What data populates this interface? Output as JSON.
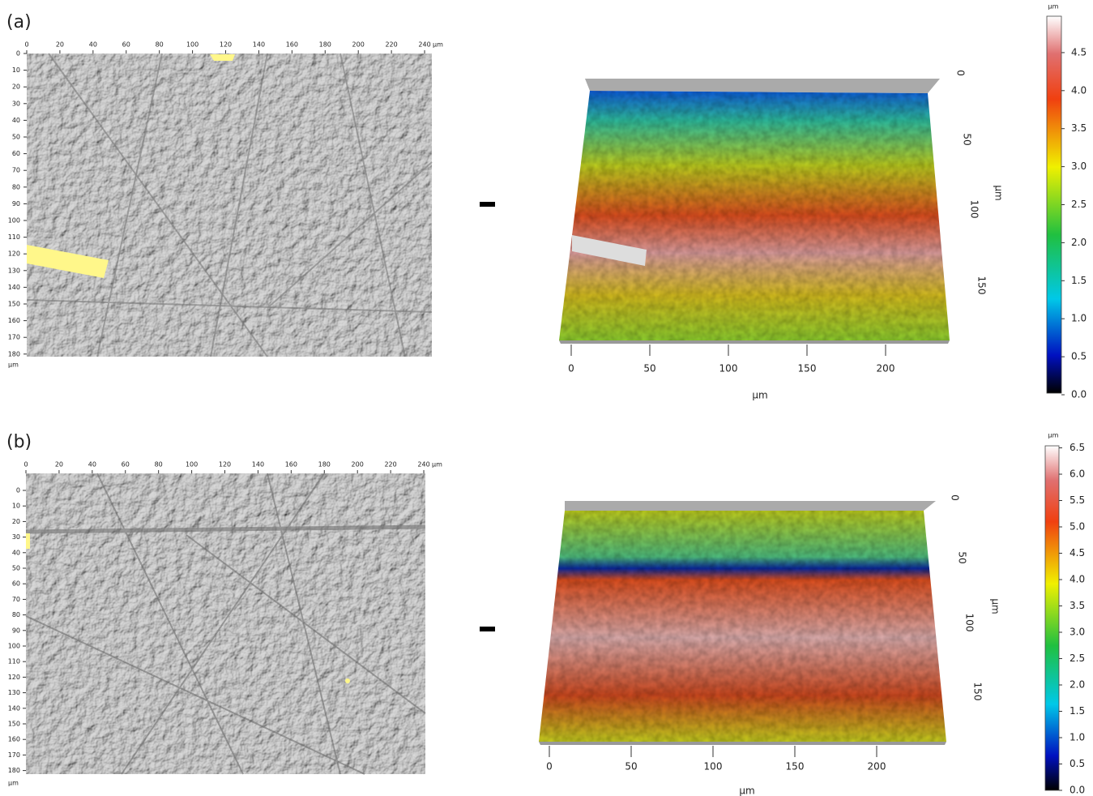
{
  "panels": [
    {
      "label": "(a)",
      "map": {
        "x_ticks": [
          0,
          20,
          40,
          60,
          80,
          100,
          120,
          140,
          160,
          180,
          200,
          220,
          240
        ],
        "x_unit": "µm",
        "y_ticks": [
          0,
          10,
          20,
          30,
          40,
          50,
          60,
          70,
          80,
          90,
          100,
          110,
          120,
          130,
          140,
          150,
          160,
          170,
          180
        ],
        "y_unit": "µm"
      },
      "view3d": {
        "x_ticks": [
          0,
          50,
          100,
          150,
          200
        ],
        "x_label": "µm",
        "y_ticks": [
          0,
          50,
          100,
          150
        ],
        "y_label": "µm"
      },
      "colorbar": {
        "unit": "µm",
        "ticks": [
          "0.0",
          "0.5",
          "1.0",
          "1.5",
          "2.0",
          "2.5",
          "3.0",
          "3.5",
          "4.0",
          "4.5"
        ]
      }
    },
    {
      "label": "(b)",
      "map": {
        "x_ticks": [
          0,
          20,
          40,
          60,
          80,
          100,
          120,
          140,
          160,
          180,
          200,
          220,
          240
        ],
        "x_unit": "µm",
        "y_ticks": [
          0,
          10,
          20,
          30,
          40,
          50,
          60,
          70,
          80,
          90,
          100,
          110,
          120,
          130,
          140,
          150,
          160,
          170,
          180
        ],
        "y_unit": "µm"
      },
      "view3d": {
        "x_ticks": [
          0,
          50,
          100,
          150,
          200
        ],
        "x_label": "µm",
        "y_ticks": [
          0,
          50,
          100,
          150
        ],
        "y_label": "µm"
      },
      "colorbar": {
        "unit": "µm",
        "ticks": [
          "0.0",
          "0.5",
          "1.0",
          "1.5",
          "2.0",
          "2.5",
          "3.0",
          "3.5",
          "4.0",
          "4.5",
          "5.0",
          "5.5",
          "6.0",
          "6.5"
        ]
      }
    }
  ]
}
